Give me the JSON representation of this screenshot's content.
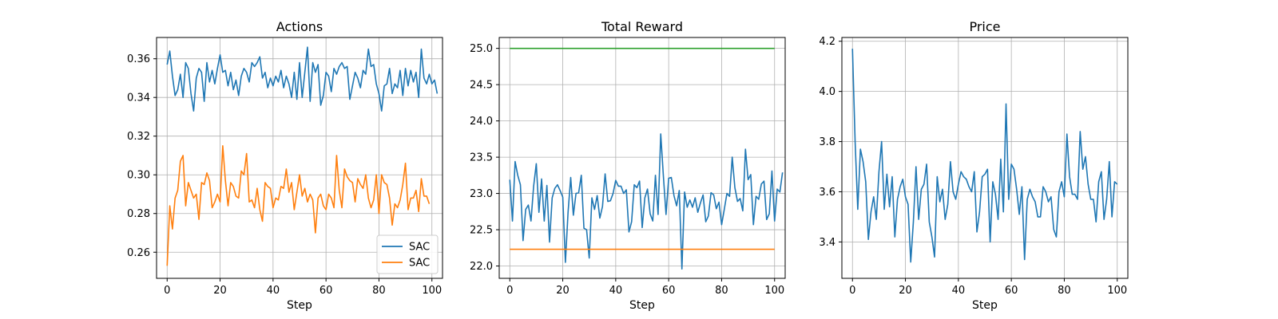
{
  "chart_data": [
    {
      "type": "line",
      "title": "Actions",
      "xlabel": "Step",
      "ylabel": "",
      "xlim": [
        -4,
        104
      ],
      "ylim": [
        0.2465,
        0.371
      ],
      "xticks": [
        0,
        20,
        40,
        60,
        80,
        100
      ],
      "yticks": [
        0.26,
        0.28,
        0.3,
        0.32,
        0.34,
        0.36
      ],
      "ytick_decimals": 2,
      "grid": true,
      "legend": "lower-right",
      "series": [
        {
          "name": "SAC",
          "color": "#1f77b4",
          "x_start": 0,
          "values": [
            0.357,
            0.364,
            0.351,
            0.341,
            0.344,
            0.352,
            0.34,
            0.358,
            0.355,
            0.342,
            0.333,
            0.35,
            0.355,
            0.353,
            0.338,
            0.358,
            0.348,
            0.354,
            0.347,
            0.355,
            0.362,
            0.353,
            0.354,
            0.346,
            0.353,
            0.344,
            0.349,
            0.341,
            0.351,
            0.355,
            0.353,
            0.348,
            0.358,
            0.356,
            0.358,
            0.361,
            0.35,
            0.353,
            0.345,
            0.35,
            0.346,
            0.351,
            0.348,
            0.354,
            0.345,
            0.351,
            0.347,
            0.34,
            0.353,
            0.339,
            0.358,
            0.34,
            0.353,
            0.366,
            0.338,
            0.358,
            0.353,
            0.357,
            0.336,
            0.341,
            0.353,
            0.351,
            0.343,
            0.355,
            0.352,
            0.356,
            0.358,
            0.355,
            0.356,
            0.339,
            0.346,
            0.353,
            0.35,
            0.345,
            0.354,
            0.352,
            0.365,
            0.356,
            0.357,
            0.347,
            0.342,
            0.333,
            0.346,
            0.347,
            0.355,
            0.342,
            0.347,
            0.345,
            0.354,
            0.341,
            0.355,
            0.346,
            0.354,
            0.348,
            0.353,
            0.34,
            0.365,
            0.35,
            0.347,
            0.352,
            0.347,
            0.349,
            0.342
          ],
          "x_values_note_hidden": ""
        },
        {
          "name": "SAC",
          "color": "#ff7f0e",
          "x_start": 0,
          "values": [
            0.253,
            0.284,
            0.272,
            0.288,
            0.292,
            0.307,
            0.31,
            0.284,
            0.296,
            0.292,
            0.288,
            0.29,
            0.277,
            0.296,
            0.295,
            0.301,
            0.297,
            0.283,
            0.286,
            0.29,
            0.286,
            0.315,
            0.297,
            0.284,
            0.296,
            0.294,
            0.289,
            0.288,
            0.302,
            0.3,
            0.311,
            0.286,
            0.287,
            0.283,
            0.293,
            0.282,
            0.276,
            0.296,
            0.294,
            0.293,
            0.283,
            0.288,
            0.287,
            0.294,
            0.293,
            0.303,
            0.291,
            0.296,
            0.282,
            0.291,
            0.3,
            0.289,
            0.293,
            0.286,
            0.29,
            0.287,
            0.27,
            0.288,
            0.29,
            0.284,
            0.282,
            0.29,
            0.288,
            0.283,
            0.31,
            0.292,
            0.283,
            0.303,
            0.299,
            0.297,
            0.296,
            0.286,
            0.298,
            0.295,
            0.293,
            0.3,
            0.288,
            0.283,
            0.287,
            0.3,
            0.28,
            0.3,
            0.296,
            0.295,
            0.288,
            0.274,
            0.285,
            0.283,
            0.287,
            0.295,
            0.306,
            0.282,
            0.288,
            0.288,
            0.292,
            0.281,
            0.298,
            0.289,
            0.289,
            0.285
          ],
          "x_values_note_hidden": ""
        }
      ]
    },
    {
      "type": "line",
      "title": "Total Reward",
      "xlabel": "Step",
      "ylabel": "",
      "xlim": [
        -4,
        104
      ],
      "ylim": [
        21.83,
        25.15
      ],
      "xticks": [
        0,
        20,
        40,
        60,
        80,
        100
      ],
      "yticks": [
        22.0,
        22.5,
        23.0,
        23.5,
        24.0,
        24.5,
        25.0
      ],
      "ytick_decimals": 1,
      "grid": true,
      "legend": "none",
      "series": [
        {
          "name": "",
          "color": "#1f77b4",
          "x_start": 0,
          "values": [
            23.19,
            22.62,
            23.44,
            23.25,
            23.12,
            22.35,
            22.78,
            22.84,
            22.62,
            23.1,
            23.41,
            22.74,
            23.2,
            22.62,
            23.11,
            22.33,
            22.94,
            23.07,
            23.12,
            23.04,
            22.95,
            22.05,
            22.74,
            23.22,
            22.7,
            23.0,
            23.01,
            23.25,
            22.52,
            22.5,
            22.11,
            22.94,
            22.78,
            22.97,
            22.66,
            22.82,
            23.27,
            22.89,
            22.9,
            23.0,
            23.18,
            23.1,
            23.1,
            23.0,
            23.05,
            22.47,
            22.61,
            23.12,
            23.08,
            23.17,
            22.53,
            22.94,
            23.06,
            22.72,
            22.62,
            23.25,
            22.71,
            23.82,
            23.24,
            22.71,
            23.21,
            23.22,
            22.97,
            22.83,
            23.04,
            21.96,
            23.02,
            22.81,
            22.91,
            22.81,
            22.94,
            22.74,
            22.87,
            22.98,
            22.61,
            22.69,
            23.01,
            22.98,
            22.79,
            22.88,
            22.57,
            22.78,
            23.0,
            22.96,
            23.5,
            23.08,
            22.89,
            22.93,
            22.76,
            23.61,
            23.19,
            23.26,
            22.57,
            22.96,
            22.92,
            23.13,
            23.17,
            22.64,
            22.72,
            23.31,
            22.62,
            23.06,
            23.02,
            23.29
          ],
          "x_values_note_hidden": ""
        },
        {
          "name": "",
          "color": "#2ca02c",
          "x_start": 0,
          "constant": 25.0,
          "x_end": 100
        },
        {
          "name": "",
          "color": "#ff7f0e",
          "x_start": 0,
          "constant": 22.23,
          "x_end": 100
        }
      ]
    },
    {
      "type": "line",
      "title": "Price",
      "xlabel": "Step",
      "ylabel": "",
      "xlim": [
        -4,
        104
      ],
      "ylim": [
        3.255,
        4.215
      ],
      "xticks": [
        0,
        20,
        40,
        60,
        80,
        100
      ],
      "yticks": [
        3.4,
        3.6,
        3.8,
        4.0,
        4.2
      ],
      "ytick_decimals": 1,
      "grid": true,
      "legend": "none",
      "series": [
        {
          "name": "",
          "color": "#1f77b4",
          "x_start": 0,
          "values": [
            4.17,
            3.8,
            3.53,
            3.77,
            3.72,
            3.64,
            3.41,
            3.52,
            3.58,
            3.49,
            3.68,
            3.8,
            3.53,
            3.67,
            3.54,
            3.66,
            3.42,
            3.57,
            3.62,
            3.65,
            3.58,
            3.55,
            3.32,
            3.48,
            3.7,
            3.49,
            3.61,
            3.63,
            3.71,
            3.48,
            3.42,
            3.34,
            3.66,
            3.56,
            3.61,
            3.49,
            3.55,
            3.72,
            3.6,
            3.57,
            3.63,
            3.68,
            3.66,
            3.65,
            3.62,
            3.6,
            3.68,
            3.44,
            3.52,
            3.66,
            3.67,
            3.69,
            3.4,
            3.64,
            3.59,
            3.49,
            3.73,
            3.52,
            3.95,
            3.57,
            3.71,
            3.69,
            3.61,
            3.51,
            3.62,
            3.33,
            3.57,
            3.61,
            3.58,
            3.56,
            3.5,
            3.5,
            3.62,
            3.6,
            3.56,
            3.58,
            3.45,
            3.42,
            3.6,
            3.64,
            3.58,
            3.83,
            3.66,
            3.59,
            3.59,
            3.57,
            3.84,
            3.69,
            3.74,
            3.63,
            3.57,
            3.57,
            3.48,
            3.64,
            3.68,
            3.49,
            3.57,
            3.72,
            3.5,
            3.64,
            3.63
          ],
          "x_values_note_hidden": ""
        }
      ]
    }
  ]
}
